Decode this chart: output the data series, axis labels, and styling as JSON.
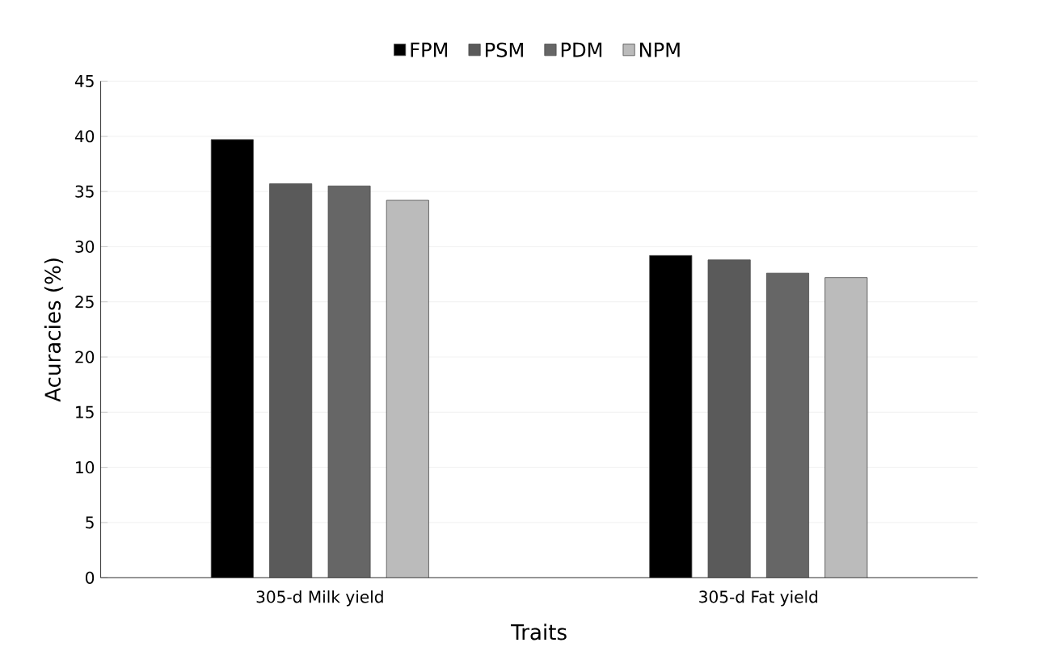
{
  "chart_data": {
    "type": "bar",
    "xlabel": "Traits",
    "ylabel": "Acuracies (%)",
    "categories": [
      "305-d Milk yield",
      "305-d Fat yield"
    ],
    "series": [
      {
        "name": "FPM",
        "color": "#000000",
        "values": [
          39.7,
          29.2
        ]
      },
      {
        "name": "PSM",
        "color": "#5a5a5a",
        "values": [
          35.7,
          28.8
        ]
      },
      {
        "name": "PDM",
        "color": "#666666",
        "values": [
          35.5,
          27.6
        ]
      },
      {
        "name": "NPM",
        "color": "#bbbbbb",
        "values": [
          34.2,
          27.2
        ]
      }
    ],
    "ylim": [
      0,
      45
    ],
    "yticks": [
      0,
      5,
      10,
      15,
      20,
      25,
      30,
      35,
      40,
      45
    ],
    "grid": "y",
    "legend": "top"
  }
}
